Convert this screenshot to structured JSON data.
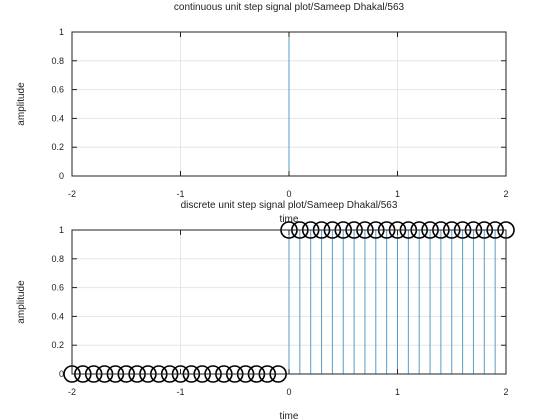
{
  "chart_data": [
    {
      "type": "line",
      "title": "continuous unit step signal plot/Sameep Dhakal/563",
      "xlabel": "time",
      "ylabel": "amplitude",
      "xlim": [
        -2,
        2
      ],
      "ylim": [
        0,
        1
      ],
      "xticks": [
        "-2",
        "-1",
        "0",
        "1",
        "2"
      ],
      "yticks": [
        "0",
        "0.2",
        "0.4",
        "0.6",
        "0.8",
        "1"
      ],
      "grid": true,
      "series": [
        {
          "x": [
            -2,
            0,
            0,
            2
          ],
          "y": [
            0,
            0,
            1,
            1
          ],
          "color": "#5b9bc8"
        }
      ]
    },
    {
      "type": "stem",
      "title": "discrete unit step signal plot/Sameep Dhakal/563",
      "xlabel": "time",
      "ylabel": "amplitude",
      "xlim": [
        -2,
        2
      ],
      "ylim": [
        0,
        1
      ],
      "xticks": [
        "-2",
        "-1",
        "0",
        "1",
        "2"
      ],
      "yticks": [
        "0",
        "0.2",
        "0.4",
        "0.6",
        "0.8",
        "1"
      ],
      "grid": true,
      "series": [
        {
          "x": [
            -2,
            -1.9,
            -1.8,
            -1.7,
            -1.6,
            -1.5,
            -1.4,
            -1.3,
            -1.2,
            -1.1,
            -1,
            -0.9,
            -0.8,
            -0.7,
            -0.6,
            -0.5,
            -0.4,
            -0.3,
            -0.2,
            -0.1,
            0,
            0.1,
            0.2,
            0.3,
            0.4,
            0.5,
            0.6,
            0.7,
            0.8,
            0.9,
            1,
            1.1,
            1.2,
            1.3,
            1.4,
            1.5,
            1.6,
            1.7,
            1.8,
            1.9,
            2
          ],
          "y": [
            0,
            0,
            0,
            0,
            0,
            0,
            0,
            0,
            0,
            0,
            0,
            0,
            0,
            0,
            0,
            0,
            0,
            0,
            0,
            0,
            1,
            1,
            1,
            1,
            1,
            1,
            1,
            1,
            1,
            1,
            1,
            1,
            1,
            1,
            1,
            1,
            1,
            1,
            1,
            1,
            1
          ],
          "color": "#5b9bc8",
          "marker": "circle"
        }
      ]
    }
  ]
}
